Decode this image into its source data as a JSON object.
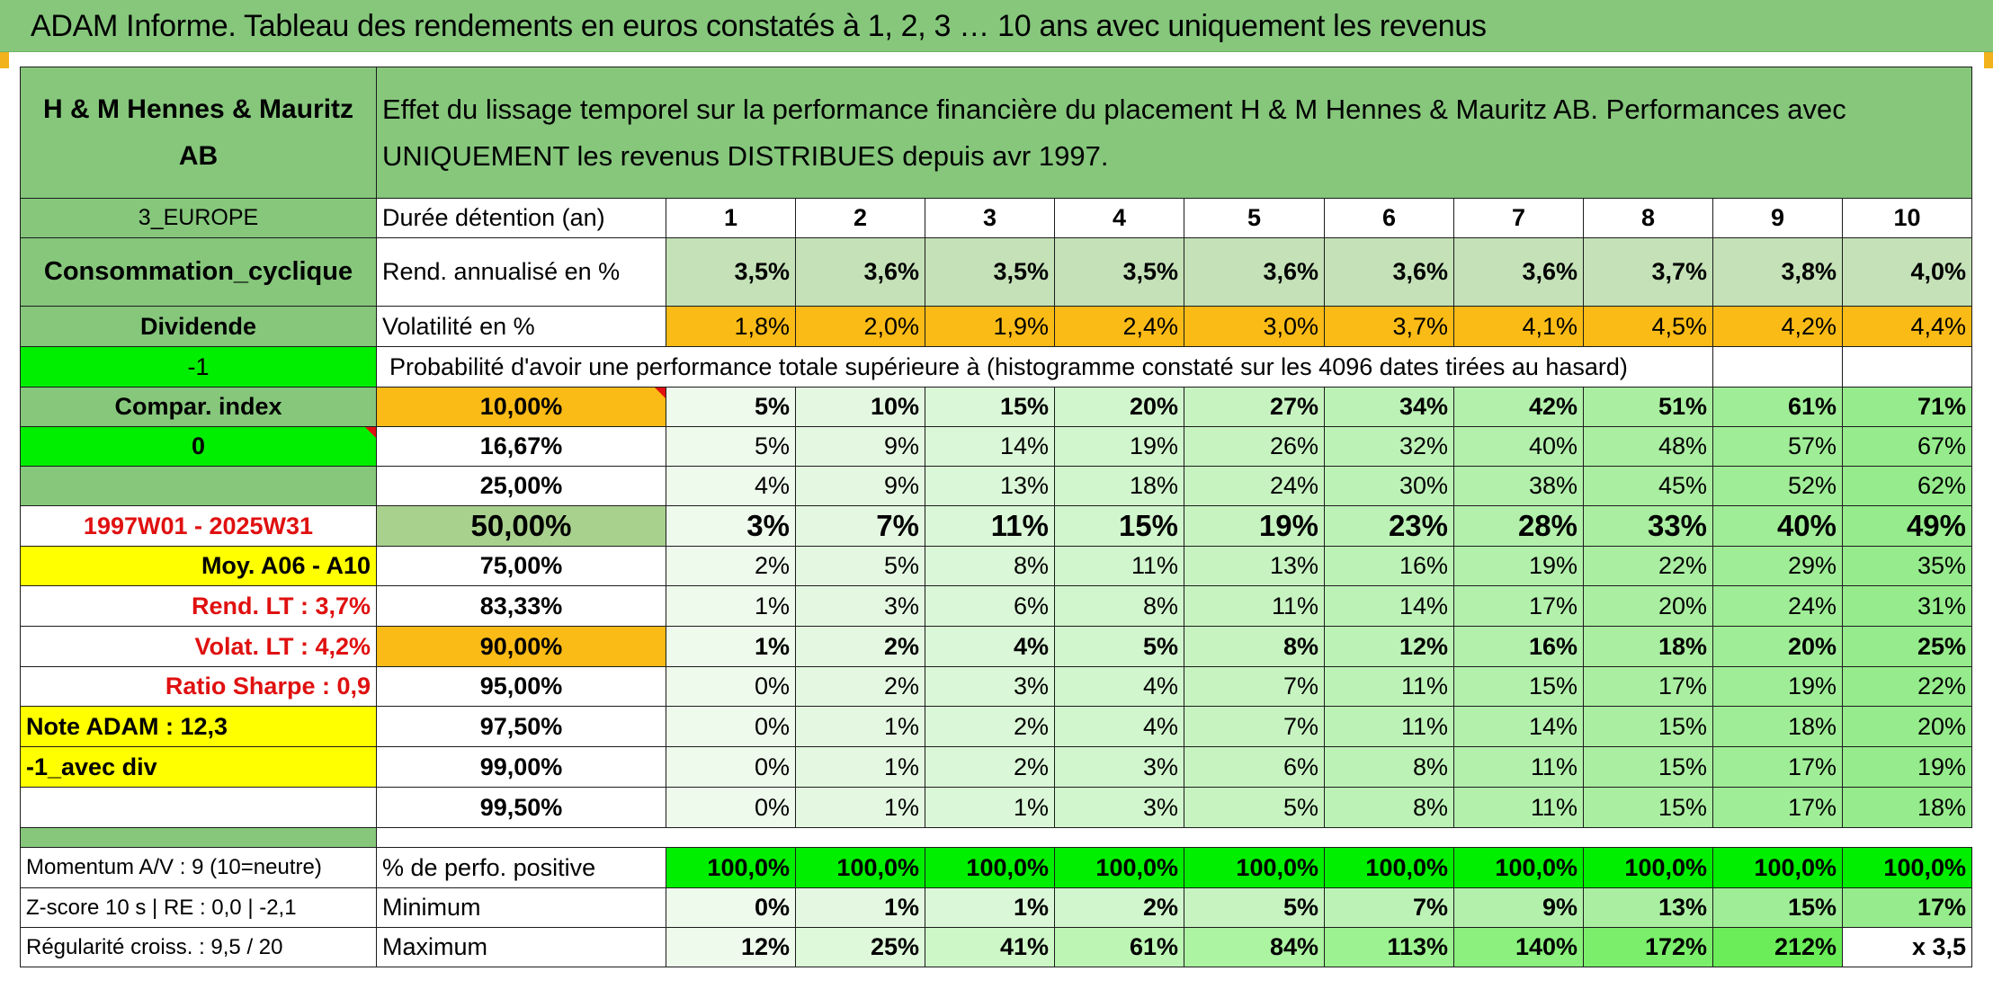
{
  "title": "ADAM Informe. Tableau des rendements en euros constatés à 1, 2, 3 … 10 ans avec uniquement les revenus",
  "company": "H & M Hennes & Mauritz AB",
  "description": "Effet du lissage temporel sur la performance financière du placement H & M Hennes & Mauritz AB. Performances avec UNIQUEMENT les revenus DISTRIBUES depuis avr 1997.",
  "description_line1": "Effet du lissage temporel sur la performance financière du placement H & M Hennes & Mauritz AB. Performances avec",
  "description_line2": "UNIQUEMENT les revenus DISTRIBUES depuis avr 1997.",
  "left": {
    "region": "3_EUROPE",
    "sector": "Consommation_cyclique",
    "type": "Dividende",
    "flag1": "-1",
    "compar": "Compar. index",
    "flag2": "0",
    "period": "1997W01 - 2025W31",
    "moy": "Moy. A06 - A10",
    "rend_lt": "Rend. LT :   3,7%",
    "volat_lt": "Volat. LT :   4,2%",
    "sharpe": "Ratio Sharpe :    0,9",
    "note": "Note ADAM : 12,3",
    "avec_div": "-1_avec div",
    "momentum": "Momentum A/V : 9 (10=neutre)",
    "zscore": "Z-score 10 s | RE : 0,0 | -2,1",
    "regularite": "Régularité croiss. : 9,5 / 20"
  },
  "labels": {
    "duree": "Durée détention (an)",
    "rend": "Rend. annualisé en %",
    "vol": "Volatilité en %",
    "proba": "Probabilité d'avoir une performance totale supérieure à (histogramme constaté sur les 4096 dates tirées au hasard)",
    "positive": "% de perfo. positive",
    "minimum": "Minimum",
    "maximum": "Maximum"
  },
  "years": [
    "1",
    "2",
    "3",
    "4",
    "5",
    "6",
    "7",
    "8",
    "9",
    "10"
  ],
  "rend": [
    "3,5%",
    "3,6%",
    "3,5%",
    "3,5%",
    "3,6%",
    "3,6%",
    "3,6%",
    "3,7%",
    "3,8%",
    "4,0%"
  ],
  "vol": [
    "1,8%",
    "2,0%",
    "1,9%",
    "2,4%",
    "3,0%",
    "3,7%",
    "4,1%",
    "4,5%",
    "4,2%",
    "4,4%"
  ],
  "prob_rows": [
    {
      "threshold": "10,00%",
      "values": [
        "5%",
        "10%",
        "15%",
        "20%",
        "27%",
        "34%",
        "42%",
        "51%",
        "61%",
        "71%"
      ]
    },
    {
      "threshold": "16,67%",
      "values": [
        "5%",
        "9%",
        "14%",
        "19%",
        "26%",
        "32%",
        "40%",
        "48%",
        "57%",
        "67%"
      ]
    },
    {
      "threshold": "25,00%",
      "values": [
        "4%",
        "9%",
        "13%",
        "18%",
        "24%",
        "30%",
        "38%",
        "45%",
        "52%",
        "62%"
      ]
    },
    {
      "threshold": "50,00%",
      "values": [
        "3%",
        "7%",
        "11%",
        "15%",
        "19%",
        "23%",
        "28%",
        "33%",
        "40%",
        "49%"
      ]
    },
    {
      "threshold": "75,00%",
      "values": [
        "2%",
        "5%",
        "8%",
        "11%",
        "13%",
        "16%",
        "19%",
        "22%",
        "29%",
        "35%"
      ]
    },
    {
      "threshold": "83,33%",
      "values": [
        "1%",
        "3%",
        "6%",
        "8%",
        "11%",
        "14%",
        "17%",
        "20%",
        "24%",
        "31%"
      ]
    },
    {
      "threshold": "90,00%",
      "values": [
        "1%",
        "2%",
        "4%",
        "5%",
        "8%",
        "12%",
        "16%",
        "18%",
        "20%",
        "25%"
      ]
    },
    {
      "threshold": "95,00%",
      "values": [
        "0%",
        "2%",
        "3%",
        "4%",
        "7%",
        "11%",
        "15%",
        "17%",
        "19%",
        "22%"
      ]
    },
    {
      "threshold": "97,50%",
      "values": [
        "0%",
        "1%",
        "2%",
        "4%",
        "7%",
        "11%",
        "14%",
        "15%",
        "18%",
        "20%"
      ]
    },
    {
      "threshold": "99,00%",
      "values": [
        "0%",
        "1%",
        "2%",
        "3%",
        "6%",
        "8%",
        "11%",
        "15%",
        "17%",
        "19%"
      ]
    },
    {
      "threshold": "99,50%",
      "values": [
        "0%",
        "1%",
        "1%",
        "3%",
        "5%",
        "8%",
        "11%",
        "15%",
        "17%",
        "18%"
      ]
    }
  ],
  "positive": [
    "100,0%",
    "100,0%",
    "100,0%",
    "100,0%",
    "100,0%",
    "100,0%",
    "100,0%",
    "100,0%",
    "100,0%",
    "100,0%"
  ],
  "minimum": [
    "0%",
    "1%",
    "1%",
    "2%",
    "5%",
    "7%",
    "9%",
    "13%",
    "15%",
    "17%"
  ],
  "maximum": [
    "12%",
    "25%",
    "41%",
    "61%",
    "84%",
    "113%",
    "140%",
    "172%",
    "212%",
    "x 3,5"
  ],
  "colors": {
    "header_green": "#86c77c",
    "light_green": "#c4e1b7",
    "orange": "#fbbb16",
    "bright_green": "#00ee00",
    "yellow": "#ffff00",
    "red_text": "#e01010"
  }
}
